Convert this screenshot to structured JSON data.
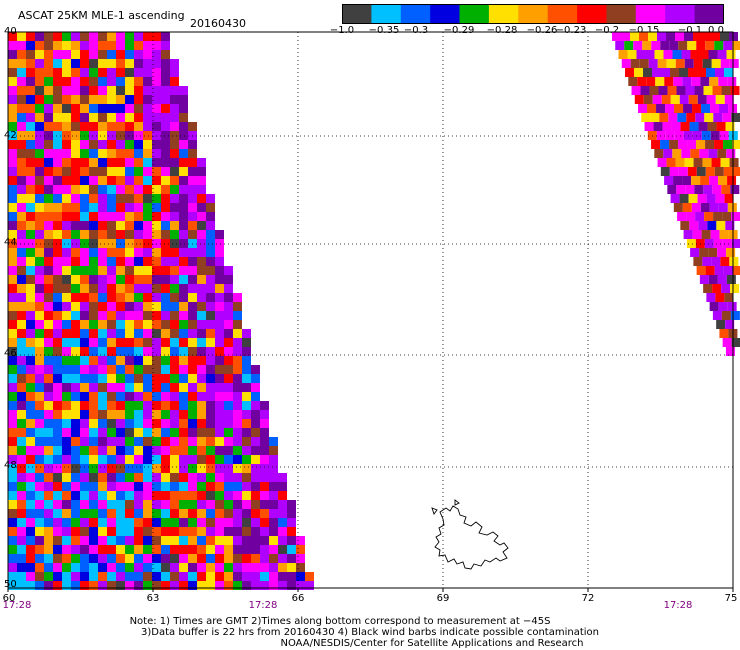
{
  "title": "ASCAT 25KM MLE-1 ascending",
  "date": "20160430",
  "colorbar": {
    "colors": [
      "#404040",
      "#00c0ff",
      "#0060ff",
      "#0000e0",
      "#00b000",
      "#ffe000",
      "#ffa000",
      "#ff5000",
      "#ff0000",
      "#904020",
      "#ff00ff",
      "#b000ff",
      "#7000a0"
    ],
    "labels": [
      "−1.0",
      "−0.35",
      "−0.3",
      "−0.29",
      "−0.28",
      "−0.26",
      "−0.23",
      "−0.2",
      "−0.15",
      "−0.1",
      "0.0"
    ]
  },
  "map": {
    "lon_ticks": [
      "60",
      "63",
      "66",
      "69",
      "72",
      "75"
    ],
    "lat_ticks": [
      "40",
      "42",
      "44",
      "46",
      "48",
      "50"
    ],
    "lon_range": [
      60,
      75
    ],
    "lat_range": [
      -40,
      -50
    ],
    "grid": true
  },
  "times": [
    "17:28",
    "17:28",
    "17:28"
  ],
  "notes": [
    "Note: 1) Times are GMT 2)Times along bottom correspond to measurement at −45S",
    "3)Data buffer is 22 hrs from 20160430 4) Black wind barbs indicate possible contamination",
    "NOAA/NESDIS/Center for Satellite Applications and Research"
  ]
}
